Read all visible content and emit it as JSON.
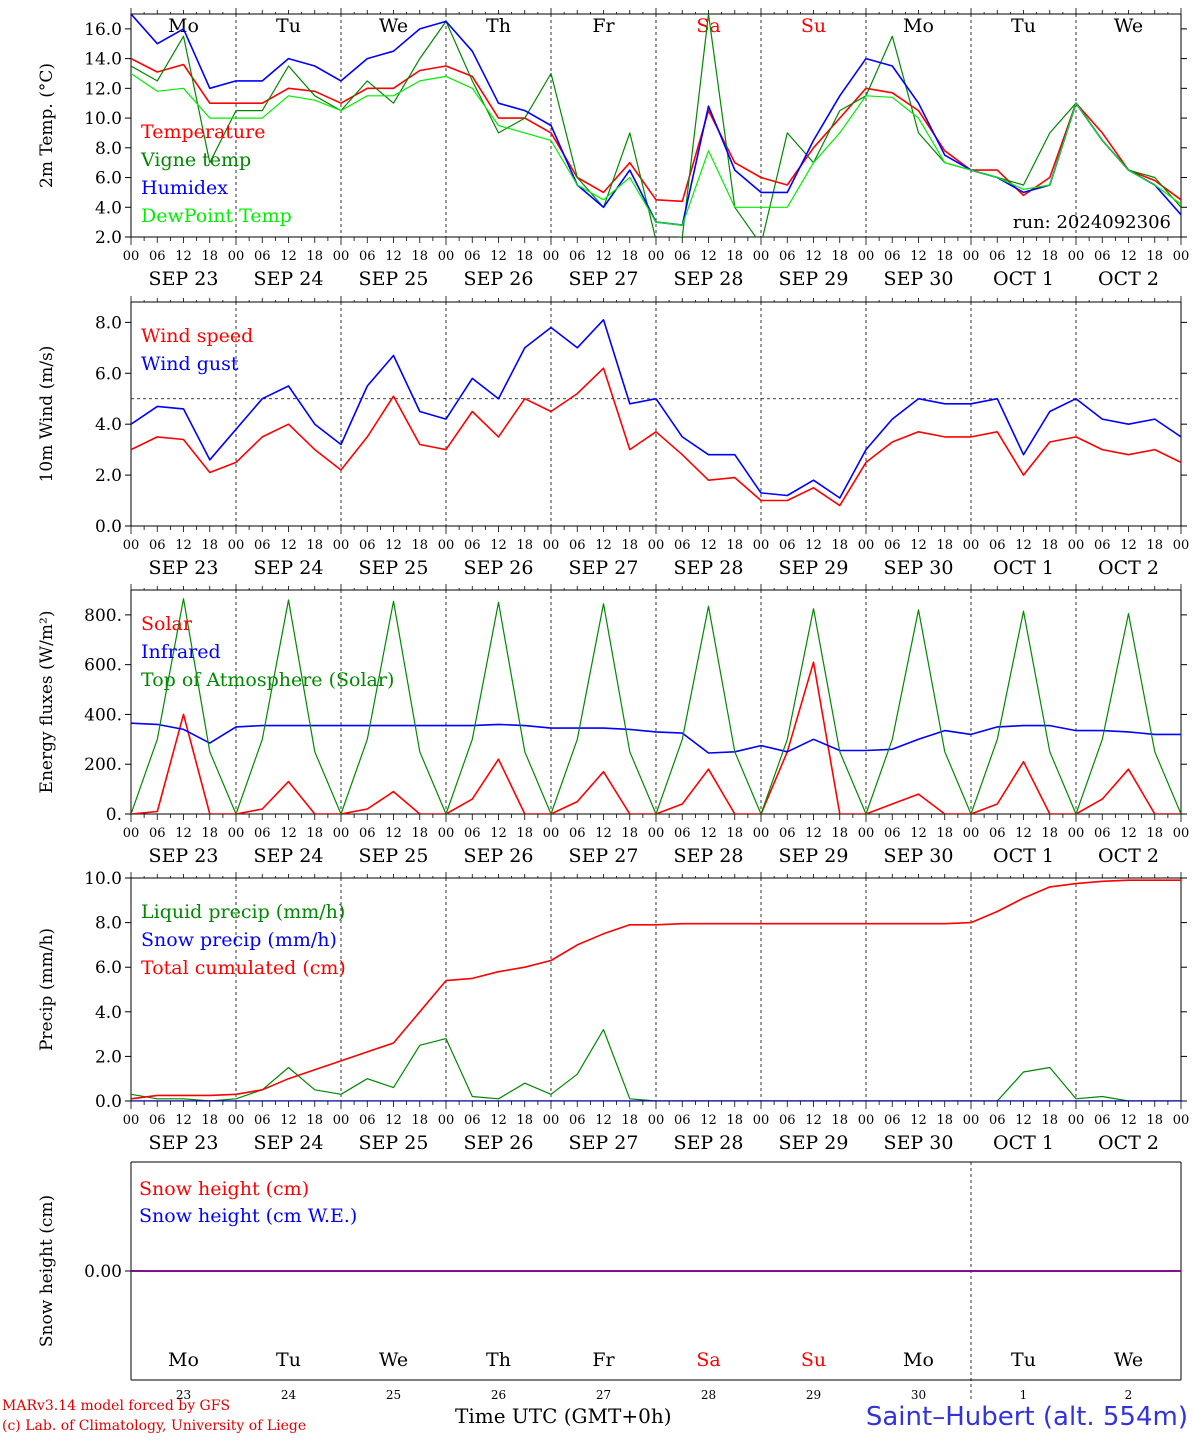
{
  "chart_data": [
    {
      "type": "line",
      "id": "temperature",
      "ylabel": "2m Temp. (°C)",
      "ylim": [
        2,
        17
      ],
      "yticks": [
        "2.0",
        "4.0",
        "6.0",
        "8.0",
        "10.0",
        "12.0",
        "14.0",
        "16.0"
      ],
      "ytick_values": [
        2,
        4,
        6,
        8,
        10,
        12,
        14,
        16
      ],
      "annotation": "run: 2024092306",
      "x": [
        0,
        6,
        12,
        18,
        24,
        30,
        36,
        42,
        48,
        54,
        60,
        66,
        72,
        78,
        84,
        90,
        96,
        102,
        108,
        114,
        120,
        126,
        132,
        138,
        144,
        150,
        156,
        162,
        168,
        174,
        180,
        186,
        192,
        198,
        204,
        210,
        216,
        222,
        228,
        234,
        240
      ],
      "series": [
        {
          "name": "Temperature",
          "color": "#ff0000",
          "values": [
            14.0,
            13.1,
            13.6,
            11.0,
            11.0,
            11.0,
            12.0,
            11.8,
            11.0,
            12.0,
            12.0,
            13.2,
            13.5,
            12.8,
            10.0,
            10.0,
            9.0,
            6.0,
            5.0,
            7.0,
            4.5,
            4.4,
            10.5,
            7.0,
            6.0,
            5.5,
            8.0,
            10.0,
            12.0,
            11.7,
            10.5,
            7.8,
            6.5,
            6.5,
            4.8,
            6.0,
            11.0,
            9.0,
            6.5,
            5.8,
            4.5
          ]
        },
        {
          "name": "Vigne temp",
          "color": "#008800",
          "values": [
            13.5,
            12.5,
            15.5,
            7.0,
            10.5,
            10.5,
            13.5,
            11.5,
            10.5,
            12.5,
            11.0,
            14.0,
            16.5,
            12.5,
            9.0,
            10.0,
            13.0,
            6.0,
            4.0,
            9.0,
            1.8,
            2.0,
            17.0,
            4.0,
            1.5,
            9.0,
            7.0,
            10.5,
            11.5,
            15.5,
            9.0,
            7.0,
            6.5,
            6.0,
            5.5,
            9.0,
            11.0,
            8.5,
            6.5,
            6.0,
            4.0
          ]
        },
        {
          "name": "Humidex",
          "color": "#0000ff",
          "values": [
            17.0,
            15.0,
            16.0,
            12.0,
            12.5,
            12.5,
            14.0,
            13.5,
            12.5,
            14.0,
            14.5,
            16.0,
            16.5,
            14.5,
            11.0,
            10.5,
            9.5,
            5.5,
            4.0,
            6.5,
            3.0,
            2.8,
            10.8,
            6.5,
            5.0,
            5.0,
            8.5,
            11.5,
            14.0,
            13.5,
            11.0,
            7.5,
            6.5,
            6.0,
            5.0,
            5.5,
            11.0,
            8.5,
            6.5,
            5.5,
            3.5
          ]
        },
        {
          "name": "DewPoint Temp",
          "color": "#00ee00",
          "values": [
            13.0,
            11.8,
            12.0,
            10.0,
            10.0,
            10.0,
            11.5,
            11.2,
            10.5,
            11.5,
            11.5,
            12.5,
            12.8,
            12.0,
            9.5,
            9.0,
            8.5,
            5.5,
            4.5,
            6.0,
            3.0,
            2.8,
            7.8,
            4.0,
            4.0,
            4.0,
            7.0,
            9.0,
            11.5,
            11.4,
            10.0,
            7.0,
            6.5,
            6.0,
            5.2,
            5.5,
            11.0,
            8.5,
            6.5,
            5.5,
            4.2
          ]
        }
      ]
    },
    {
      "type": "line",
      "id": "wind",
      "ylabel": "10m Wind (m/s)",
      "ylim": [
        0,
        8.8
      ],
      "yticks": [
        "0.0",
        "2.0",
        "4.0",
        "6.0",
        "8.0"
      ],
      "ytick_values": [
        0,
        2,
        4,
        6,
        8
      ],
      "reference_line": 5,
      "x": [
        0,
        6,
        12,
        18,
        24,
        30,
        36,
        42,
        48,
        54,
        60,
        66,
        72,
        78,
        84,
        90,
        96,
        102,
        108,
        114,
        120,
        126,
        132,
        138,
        144,
        150,
        156,
        162,
        168,
        174,
        180,
        186,
        192,
        198,
        204,
        210,
        216,
        222,
        228,
        234,
        240
      ],
      "series": [
        {
          "name": "Wind speed",
          "color": "#ff0000",
          "values": [
            3.0,
            3.5,
            3.4,
            2.1,
            2.5,
            3.5,
            4.0,
            3.0,
            2.2,
            3.5,
            5.1,
            3.2,
            3.0,
            4.5,
            3.5,
            5.0,
            4.5,
            5.2,
            6.2,
            3.0,
            3.7,
            2.8,
            1.8,
            1.9,
            1.0,
            1.0,
            1.5,
            0.8,
            2.5,
            3.3,
            3.7,
            3.5,
            3.5,
            3.7,
            2.0,
            3.3,
            3.5,
            3.0,
            2.8,
            3.0,
            2.5
          ]
        },
        {
          "name": "Wind gust",
          "color": "#0000ff",
          "values": [
            4.0,
            4.7,
            4.6,
            2.6,
            3.8,
            5.0,
            5.5,
            4.0,
            3.2,
            5.5,
            6.7,
            4.5,
            4.2,
            5.8,
            5.0,
            7.0,
            7.8,
            7.0,
            8.1,
            4.8,
            5.0,
            3.5,
            2.8,
            2.8,
            1.3,
            1.2,
            1.8,
            1.1,
            3.0,
            4.2,
            5.0,
            4.8,
            4.8,
            5.0,
            2.8,
            4.5,
            5.0,
            4.2,
            4.0,
            4.2,
            3.5
          ]
        }
      ]
    },
    {
      "type": "line",
      "id": "energy",
      "ylabel": "Energy fluxes (W/m²)",
      "ylim": [
        0,
        900
      ],
      "yticks": [
        "0.",
        "200.",
        "400.",
        "600.",
        "800."
      ],
      "ytick_values": [
        0,
        200,
        400,
        600,
        800
      ],
      "x": [
        0,
        6,
        12,
        18,
        24,
        30,
        36,
        42,
        48,
        54,
        60,
        66,
        72,
        78,
        84,
        90,
        96,
        102,
        108,
        114,
        120,
        126,
        132,
        138,
        144,
        150,
        156,
        162,
        168,
        174,
        180,
        186,
        192,
        198,
        204,
        210,
        216,
        222,
        228,
        234,
        240
      ],
      "series": [
        {
          "name": "Solar",
          "color": "#ff0000",
          "values": [
            0,
            10,
            400,
            0,
            0,
            20,
            130,
            0,
            0,
            20,
            90,
            0,
            0,
            60,
            220,
            0,
            0,
            50,
            170,
            0,
            0,
            40,
            180,
            0,
            0,
            250,
            610,
            0,
            0,
            40,
            80,
            0,
            0,
            40,
            210,
            0,
            0,
            60,
            180,
            0,
            0
          ]
        },
        {
          "name": "Infrared",
          "color": "#0000ff",
          "values": [
            365,
            360,
            340,
            285,
            350,
            355,
            355,
            355,
            355,
            355,
            355,
            355,
            355,
            355,
            360,
            355,
            345,
            345,
            345,
            340,
            330,
            325,
            245,
            250,
            275,
            250,
            300,
            255,
            255,
            260,
            300,
            335,
            320,
            350,
            355,
            355,
            335,
            335,
            330,
            320,
            320
          ]
        },
        {
          "name": "Top of Atmosphere (Solar)",
          "color": "#008800",
          "values": [
            0,
            300,
            865,
            250,
            0,
            300,
            860,
            250,
            0,
            300,
            855,
            250,
            0,
            300,
            850,
            250,
            0,
            300,
            845,
            250,
            0,
            300,
            835,
            250,
            0,
            300,
            825,
            250,
            0,
            300,
            820,
            250,
            0,
            300,
            815,
            250,
            0,
            300,
            805,
            250,
            0
          ]
        }
      ]
    },
    {
      "type": "line",
      "id": "precip",
      "ylabel": "Precip (mm/h)",
      "ylim": [
        0,
        10
      ],
      "yticks": [
        "0.0",
        "2.0",
        "4.0",
        "6.0",
        "8.0",
        "10.0"
      ],
      "ytick_values": [
        0,
        2,
        4,
        6,
        8,
        10
      ],
      "x": [
        0,
        6,
        12,
        18,
        24,
        30,
        36,
        42,
        48,
        54,
        60,
        66,
        72,
        78,
        84,
        90,
        96,
        102,
        108,
        114,
        120,
        126,
        132,
        138,
        144,
        150,
        156,
        162,
        168,
        174,
        180,
        186,
        192,
        198,
        204,
        210,
        216,
        222,
        228,
        234,
        240
      ],
      "series": [
        {
          "name": "Liquid precip (mm/h)",
          "color": "#008800",
          "values": [
            0.3,
            0.1,
            0.1,
            0.0,
            0.1,
            0.5,
            1.5,
            0.5,
            0.3,
            1.0,
            0.6,
            2.5,
            2.8,
            0.2,
            0.1,
            0.8,
            0.3,
            1.2,
            3.2,
            0.1,
            0.0,
            0.0,
            0.0,
            0.0,
            0.0,
            0.0,
            0.0,
            0.0,
            0.0,
            0.0,
            0.0,
            0.0,
            0.0,
            0.0,
            1.3,
            1.5,
            0.1,
            0.2,
            0.0,
            0.0,
            0.0
          ]
        },
        {
          "name": "Snow precip (mm/h)",
          "color": "#0000ff",
          "values": [
            0,
            0,
            0,
            0,
            0,
            0,
            0,
            0,
            0,
            0,
            0,
            0,
            0,
            0,
            0,
            0,
            0,
            0,
            0,
            0,
            0,
            0,
            0,
            0,
            0,
            0,
            0,
            0,
            0,
            0,
            0,
            0,
            0,
            0,
            0,
            0,
            0,
            0,
            0,
            0,
            0
          ]
        },
        {
          "name": "Total cumulated (cm)",
          "color": "#ff0000",
          "values": [
            0.1,
            0.25,
            0.25,
            0.25,
            0.3,
            0.5,
            1.0,
            1.4,
            1.8,
            2.2,
            2.6,
            4.0,
            5.4,
            5.5,
            5.8,
            6.0,
            6.3,
            7.0,
            7.5,
            7.9,
            7.9,
            7.95,
            7.95,
            7.95,
            7.95,
            7.95,
            7.95,
            7.95,
            7.95,
            7.95,
            7.95,
            7.95,
            8.0,
            8.5,
            9.1,
            9.6,
            9.75,
            9.85,
            9.9,
            9.9,
            9.9
          ]
        }
      ]
    },
    {
      "type": "line",
      "id": "snow",
      "ylabel": "Snow height (cm)",
      "ylim": [
        -1,
        1
      ],
      "yticks": [
        "0.00"
      ],
      "ytick_values": [
        0
      ],
      "x": [
        0,
        240
      ],
      "series": [
        {
          "name": "Snow height (cm)",
          "color": "#ff0000",
          "values": [
            0,
            0
          ]
        },
        {
          "name": "Snow height (cm W.E.)",
          "color": "#0000ff",
          "values": [
            0,
            0
          ]
        }
      ]
    }
  ],
  "x_axis": {
    "hour_labels": [
      "00",
      "06",
      "12",
      "18"
    ],
    "last_hour_label": "00",
    "dates": [
      "SEP 23",
      "SEP 24",
      "SEP 25",
      "SEP 26",
      "SEP 27",
      "SEP 28",
      "SEP 29",
      "SEP 30",
      "OCT  1",
      "OCT  2"
    ],
    "weekdays": [
      "Mo",
      "Tu",
      "We",
      "Th",
      "Fr",
      "Sa",
      "Su",
      "Mo",
      "Tu",
      "We"
    ],
    "day_numbers": [
      "23",
      "24",
      "25",
      "26",
      "27",
      "28",
      "29",
      "30",
      "1",
      "2"
    ],
    "weekend_flags": [
      false,
      false,
      false,
      false,
      false,
      true,
      true,
      false,
      false,
      false
    ]
  },
  "colors": {
    "weekday": "#000000",
    "weekend": "#ff0000",
    "grid": "#000000"
  },
  "footer": {
    "model_line": "MARv3.14 model forced by GFS",
    "copyright_line": "(c) Lab. of Climatology, University of Liege",
    "time_label": "Time UTC (GMT+0h)",
    "station": "Saint–Hubert (alt. 554m)"
  }
}
